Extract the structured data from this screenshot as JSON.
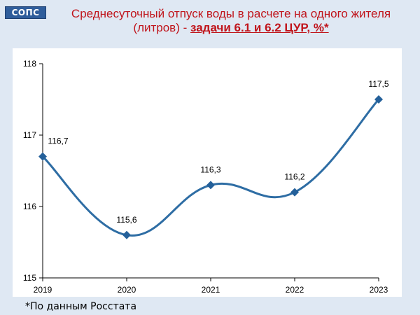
{
  "logo": {
    "text": "СОПС"
  },
  "title": {
    "main": "Среднесуточный отпуск воды в расчете на одного жителя (литров) -",
    "highlight": "задачи 6.1 и 6.2 ЦУР, %*"
  },
  "note": "*По данным Росстата",
  "colors": {
    "line": "#2e6da4",
    "marker": "#24609a",
    "title": "#c0141b"
  },
  "chart_data": {
    "type": "line",
    "categories": [
      "2019",
      "2020",
      "2021",
      "2022",
      "2023"
    ],
    "series": [
      {
        "values": [
          116.7,
          115.6,
          116.3,
          116.2,
          117.5
        ]
      }
    ],
    "data_labels": [
      "116,7",
      "115,6",
      "116,3",
      "116,2",
      "117,5"
    ],
    "ylim": [
      115,
      118
    ],
    "yticks": [
      115,
      116,
      117,
      118
    ],
    "smooth": true,
    "grid": false,
    "legend": "none"
  }
}
